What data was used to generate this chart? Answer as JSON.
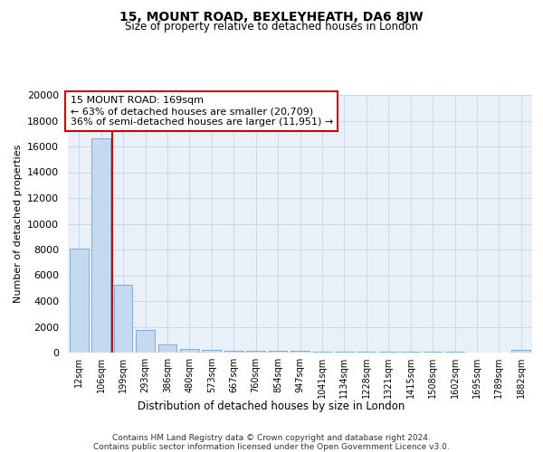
{
  "title": "15, MOUNT ROAD, BEXLEYHEATH, DA6 8JW",
  "subtitle": "Size of property relative to detached houses in London",
  "xlabel": "Distribution of detached houses by size in London",
  "ylabel": "Number of detached properties",
  "bar_labels": [
    "12sqm",
    "106sqm",
    "199sqm",
    "293sqm",
    "386sqm",
    "480sqm",
    "573sqm",
    "667sqm",
    "760sqm",
    "854sqm",
    "947sqm",
    "1041sqm",
    "1134sqm",
    "1228sqm",
    "1321sqm",
    "1415sqm",
    "1508sqm",
    "1602sqm",
    "1695sqm",
    "1789sqm",
    "1882sqm"
  ],
  "bar_values": [
    8050,
    16600,
    5250,
    1750,
    650,
    280,
    200,
    170,
    150,
    135,
    115,
    100,
    85,
    75,
    65,
    55,
    48,
    40,
    33,
    28,
    180
  ],
  "bar_color": "#c5d9f0",
  "bar_edge_color": "#7bafd4",
  "property_label": "15 MOUNT ROAD: 169sqm",
  "annotation_line1": "← 63% of detached houses are smaller (20,709)",
  "annotation_line2": "36% of semi-detached houses are larger (11,951) →",
  "red_line_color": "#cc0000",
  "annotation_box_edge": "#cc0000",
  "ylim": [
    0,
    20000
  ],
  "yticks": [
    0,
    2000,
    4000,
    6000,
    8000,
    10000,
    12000,
    14000,
    16000,
    18000,
    20000
  ],
  "grid_color": "#c8d8ec",
  "bg_color": "#eaf0f8",
  "footer1": "Contains HM Land Registry data © Crown copyright and database right 2024.",
  "footer2": "Contains public sector information licensed under the Open Government Licence v3.0."
}
